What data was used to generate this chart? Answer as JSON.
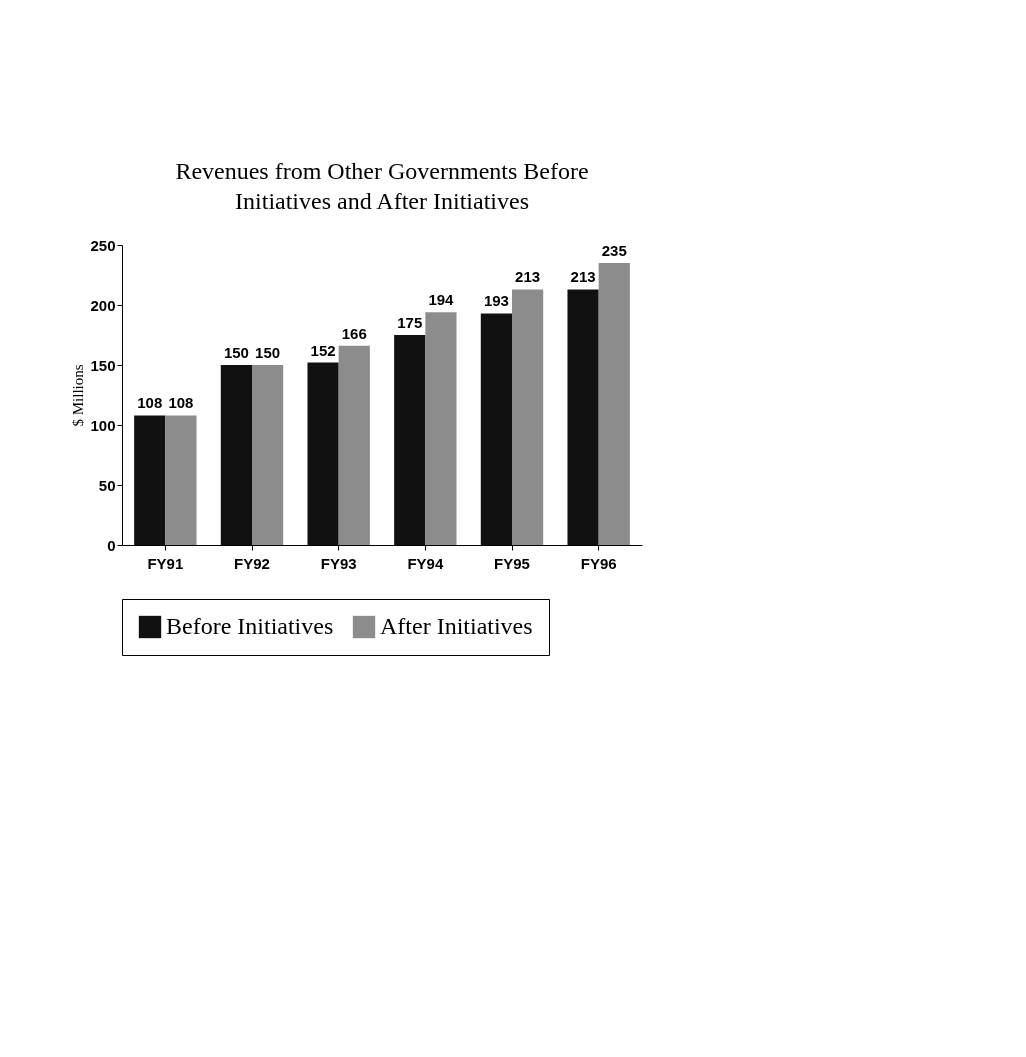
{
  "chart_data": {
    "type": "bar",
    "title": "Revenues from Other Governments Before Initiatives and After Initiatives",
    "ylabel": "$ Millions",
    "categories": [
      "FY91",
      "FY92",
      "FY93",
      "FY94",
      "FY95",
      "FY96"
    ],
    "series": [
      {
        "name": "Before Initiatives",
        "color": "#111111",
        "values": [
          108,
          150,
          152,
          175,
          193,
          213
        ]
      },
      {
        "name": "After Initiatives",
        "color": "#8c8c8c",
        "values": [
          108,
          150,
          166,
          194,
          213,
          235
        ]
      }
    ],
    "ylim": [
      0,
      250
    ],
    "yticks": [
      0,
      50,
      100,
      150,
      200,
      250
    ],
    "data_labels": true,
    "legend": "bottom",
    "grid": false
  }
}
